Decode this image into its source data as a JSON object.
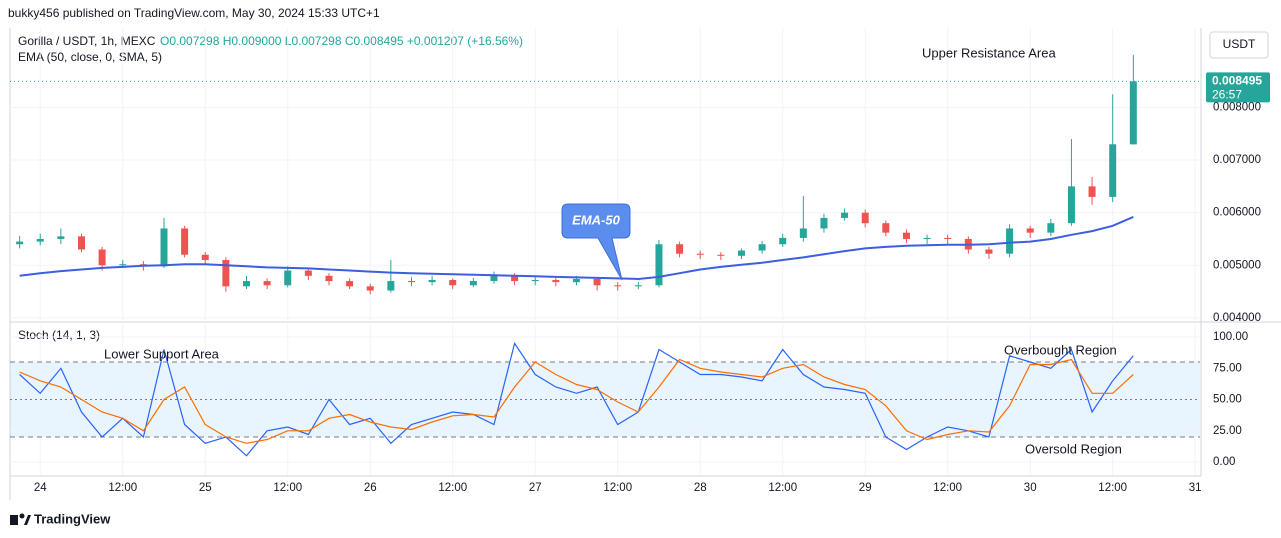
{
  "header": {
    "published": "bukky456 published on TradingView.com, May 30, 2024 15:33 UTC+1",
    "legend_symbol": "Gorilla / USDT, 1h, MEXC",
    "legend_values": "O0.007298 H0.009000 L0.007298 C0.008495 +0.001207 (+16.56%)",
    "indicator": "EMA (50, close, 0, SMA, 5)",
    "currency": "USDT",
    "footer": "TradingView"
  },
  "chart_data": [
    {
      "type": "candlestick",
      "x": [
        -3,
        0,
        3,
        6,
        9,
        12,
        15,
        18,
        21,
        24,
        27,
        30,
        33,
        36,
        39,
        42,
        45,
        48,
        51,
        54,
        57,
        60,
        63,
        66,
        69,
        72,
        75,
        78,
        81,
        84,
        87,
        90,
        93,
        96,
        99,
        102,
        105,
        108,
        111,
        114,
        117,
        120,
        123,
        126,
        129,
        132,
        135,
        138,
        141,
        144,
        147,
        150,
        153,
        156,
        159
      ],
      "open": [
        0.0054,
        0.00545,
        0.0055,
        0.00555,
        0.0053,
        0.005,
        0.00502,
        0.00498,
        0.0057,
        0.0052,
        0.0051,
        0.0046,
        0.0047,
        0.00462,
        0.0049,
        0.0048,
        0.0047,
        0.0046,
        0.00452,
        0.0047,
        0.00468,
        0.00472,
        0.00462,
        0.0047,
        0.0048,
        0.0047,
        0.00472,
        0.00468,
        0.00474,
        0.00462,
        0.0046,
        0.00462,
        0.0054,
        0.00522,
        0.0052,
        0.00518,
        0.00528,
        0.0054,
        0.00552,
        0.0057,
        0.0059,
        0.006,
        0.0058,
        0.00562,
        0.0055,
        0.00552,
        0.0055,
        0.0053,
        0.00522,
        0.0057,
        0.00562,
        0.0058,
        0.0065,
        0.0063,
        0.007298
      ],
      "high": [
        0.00556,
        0.0056,
        0.0057,
        0.0056,
        0.00535,
        0.0051,
        0.00508,
        0.0059,
        0.00575,
        0.00525,
        0.00515,
        0.0048,
        0.00475,
        0.00498,
        0.00495,
        0.00485,
        0.00475,
        0.00465,
        0.0051,
        0.00478,
        0.0048,
        0.00475,
        0.00476,
        0.00488,
        0.00485,
        0.00478,
        0.00476,
        0.0048,
        0.00478,
        0.00468,
        0.00468,
        0.00548,
        0.00545,
        0.00528,
        0.00525,
        0.00532,
        0.00546,
        0.0056,
        0.00632,
        0.00598,
        0.00608,
        0.00606,
        0.00585,
        0.00568,
        0.00558,
        0.00558,
        0.00555,
        0.00535,
        0.00578,
        0.00575,
        0.00588,
        0.0074,
        0.00668,
        0.00825,
        0.009
      ],
      "low": [
        0.00532,
        0.00538,
        0.0054,
        0.00525,
        0.0049,
        0.00495,
        0.0049,
        0.00495,
        0.00515,
        0.00502,
        0.0045,
        0.00455,
        0.00455,
        0.00458,
        0.00472,
        0.00462,
        0.00455,
        0.00445,
        0.00448,
        0.0046,
        0.00462,
        0.00455,
        0.00458,
        0.00465,
        0.00462,
        0.00462,
        0.0046,
        0.00462,
        0.00452,
        0.00452,
        0.00455,
        0.00458,
        0.00515,
        0.00512,
        0.0051,
        0.00512,
        0.00522,
        0.00535,
        0.00545,
        0.00562,
        0.00585,
        0.00572,
        0.00555,
        0.00542,
        0.0054,
        0.00538,
        0.00522,
        0.00512,
        0.00515,
        0.00552,
        0.00555,
        0.00575,
        0.00615,
        0.0062,
        0.007298
      ],
      "close": [
        0.00545,
        0.0055,
        0.00555,
        0.0053,
        0.005,
        0.00502,
        0.00498,
        0.0057,
        0.0052,
        0.0051,
        0.0046,
        0.0047,
        0.00462,
        0.0049,
        0.0048,
        0.0047,
        0.0046,
        0.00452,
        0.0047,
        0.00468,
        0.00472,
        0.00462,
        0.0047,
        0.0048,
        0.0047,
        0.00472,
        0.00468,
        0.00474,
        0.00462,
        0.0046,
        0.00462,
        0.0054,
        0.00522,
        0.0052,
        0.00518,
        0.00528,
        0.0054,
        0.00552,
        0.0057,
        0.0059,
        0.006,
        0.0058,
        0.00562,
        0.0055,
        0.00552,
        0.0055,
        0.0053,
        0.00522,
        0.0057,
        0.00562,
        0.0058,
        0.0065,
        0.0063,
        0.0073,
        0.008495
      ],
      "up_color": "#26a69a",
      "down_color": "#ef5350",
      "series": [
        {
          "name": "EMA-50",
          "color": "#3b5fe0",
          "values": [
            0.0048,
            0.00485,
            0.00489,
            0.00492,
            0.00495,
            0.00497,
            0.00499,
            0.005,
            0.00502,
            0.00502,
            0.005,
            0.00498,
            0.00496,
            0.00495,
            0.00494,
            0.00492,
            0.0049,
            0.00488,
            0.00486,
            0.00485,
            0.00484,
            0.00483,
            0.00482,
            0.00481,
            0.0048,
            0.00479,
            0.00478,
            0.00477,
            0.00476,
            0.00475,
            0.00474,
            0.00478,
            0.00485,
            0.00492,
            0.00497,
            0.00501,
            0.00505,
            0.0051,
            0.00515,
            0.00521,
            0.00527,
            0.00532,
            0.00535,
            0.00537,
            0.00538,
            0.00539,
            0.00539,
            0.0054,
            0.00543,
            0.00545,
            0.0055,
            0.00558,
            0.00565,
            0.00575,
            0.00592
          ]
        }
      ],
      "last_label": "0.008495",
      "countdown": "26:57",
      "annotations": [
        "Upper Resistance Area"
      ],
      "xlim": [
        -4.4,
        168.7
      ],
      "ylim": [
        0.00396,
        0.00951
      ],
      "xticks": [
        {
          "value": 0,
          "label": "24"
        },
        {
          "value": 12,
          "label": "12:00"
        },
        {
          "value": 24,
          "label": "25"
        },
        {
          "value": 36,
          "label": "12:00"
        },
        {
          "value": 48,
          "label": "26"
        },
        {
          "value": 60,
          "label": "12:00"
        },
        {
          "value": 72,
          "label": "27"
        },
        {
          "value": 84,
          "label": "12:00"
        },
        {
          "value": 96,
          "label": "28"
        },
        {
          "value": 108,
          "label": "12:00"
        },
        {
          "value": 120,
          "label": "29"
        },
        {
          "value": 132,
          "label": "12:00"
        },
        {
          "value": 144,
          "label": "30"
        },
        {
          "value": 156,
          "label": "12:00"
        },
        {
          "value": 168,
          "label": "31"
        }
      ],
      "yticks": [
        {
          "value": 0.004,
          "label": "0.004000"
        },
        {
          "value": 0.005,
          "label": "0.005000"
        },
        {
          "value": 0.006,
          "label": "0.006000"
        },
        {
          "value": 0.007,
          "label": "0.007000"
        },
        {
          "value": 0.008,
          "label": "0.008000"
        }
      ],
      "grid": true
    },
    {
      "type": "line",
      "title": "Stoch (14, 1, 3)",
      "x": [
        -3,
        0,
        3,
        6,
        9,
        12,
        15,
        18,
        21,
        24,
        27,
        30,
        33,
        36,
        39,
        42,
        45,
        48,
        51,
        54,
        57,
        60,
        63,
        66,
        69,
        72,
        75,
        78,
        81,
        84,
        87,
        90,
        93,
        96,
        99,
        102,
        105,
        108,
        111,
        114,
        117,
        120,
        123,
        126,
        129,
        132,
        135,
        138,
        141,
        144,
        147,
        150,
        153,
        156,
        159
      ],
      "series": [
        {
          "color": "#2962ff",
          "values": [
            70,
            55,
            75,
            40,
            20,
            35,
            20,
            90,
            30,
            15,
            20,
            5,
            25,
            28,
            22,
            50,
            30,
            35,
            15,
            30,
            35,
            40,
            38,
            30,
            95,
            70,
            60,
            55,
            60,
            30,
            40,
            90,
            80,
            70,
            70,
            68,
            65,
            90,
            70,
            60,
            58,
            55,
            20,
            10,
            20,
            28,
            25,
            20,
            85,
            80,
            75,
            90,
            40,
            65,
            85
          ]
        },
        {
          "color": "#ff6d00",
          "values": [
            72,
            65,
            60,
            50,
            40,
            35,
            25,
            50,
            60,
            30,
            20,
            15,
            18,
            25,
            25,
            35,
            38,
            32,
            28,
            26,
            32,
            37,
            38,
            36,
            60,
            80,
            70,
            62,
            58,
            48,
            40,
            60,
            82,
            75,
            72,
            70,
            68,
            75,
            78,
            68,
            62,
            58,
            45,
            25,
            18,
            22,
            25,
            24,
            45,
            78,
            78,
            82,
            55,
            55,
            70
          ]
        }
      ],
      "levels": [
        80,
        50,
        20
      ],
      "band_color": "#2196f3",
      "annotations": [
        "Lower Support Area",
        "Overbought Region",
        "Oversold Region"
      ],
      "xlim": [
        -4.4,
        168.7
      ],
      "ylim": [
        -10.4,
        109.6
      ],
      "yticks": [
        {
          "value": 0,
          "label": "0.00"
        },
        {
          "value": 25,
          "label": "25.00"
        },
        {
          "value": 50,
          "label": "50.00"
        },
        {
          "value": 75,
          "label": "75.00"
        },
        {
          "value": 100,
          "label": "100.00"
        }
      ],
      "grid": true
    }
  ]
}
